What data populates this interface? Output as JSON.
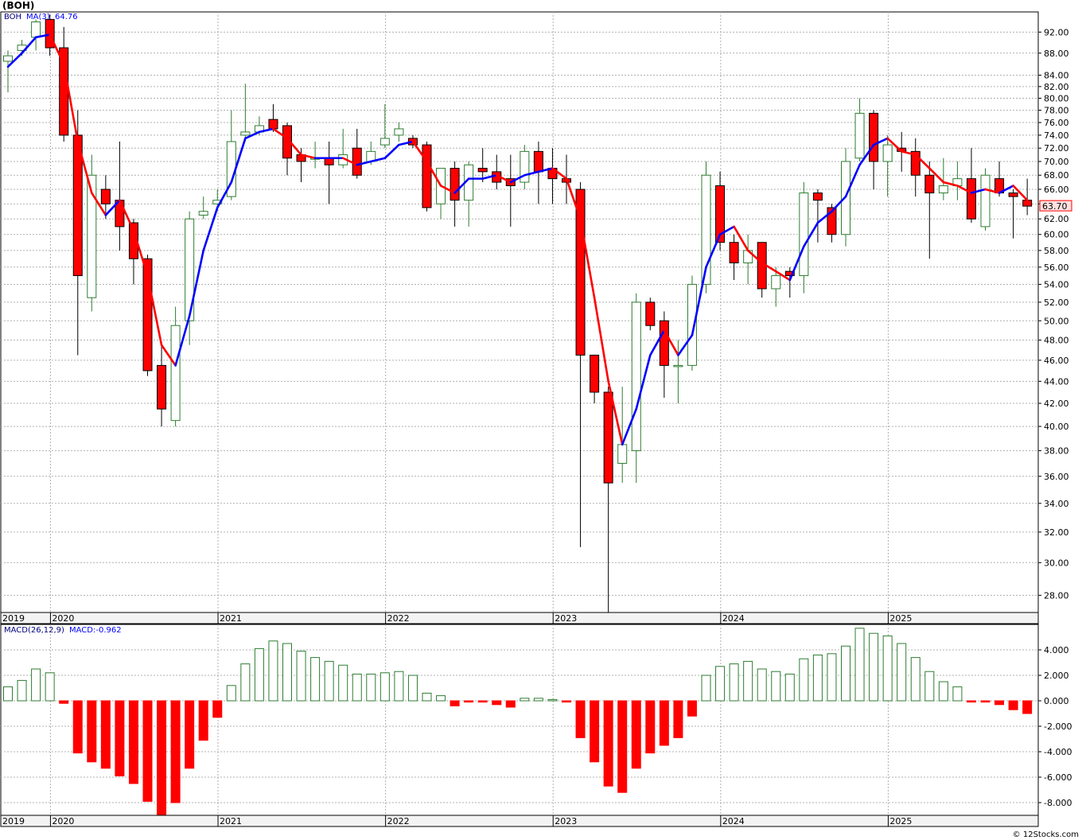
{
  "title": "(BOH)",
  "watermark": "© 12Stocks.com",
  "price_panel": {
    "symbol": "BOH",
    "ma_label": "MA(3)",
    "ma_value": "64.76",
    "last_price": "63.70",
    "y_ticks": [
      "28.00",
      "30.00",
      "32.00",
      "34.00",
      "36.00",
      "38.00",
      "40.00",
      "42.00",
      "44.00",
      "46.00",
      "48.00",
      "50.00",
      "52.00",
      "54.00",
      "56.00",
      "58.00",
      "60.00",
      "62.00",
      "64.00",
      "66.00",
      "68.00",
      "70.00",
      "72.00",
      "74.00",
      "76.00",
      "78.00",
      "80.00",
      "82.00",
      "84.00",
      "88.00",
      "92.00"
    ]
  },
  "macd_panel": {
    "label": "MACD(26,12,9)",
    "value_label": "MACD:-0.962",
    "y_ticks": [
      "4.000",
      "2.000",
      "0.000",
      "-2.000",
      "-4.000",
      "-6.000",
      "-8.000"
    ]
  },
  "years": [
    "2019",
    "2020",
    "2021",
    "2022",
    "2023",
    "2024",
    "2025"
  ],
  "colors": {
    "up": "#2e7d32",
    "down": "#ff0000",
    "ma_up": "#0000ff",
    "ma_down": "#ff0000",
    "grid": "#b0b0b0"
  },
  "chart_data": [
    {
      "type": "candlestick",
      "title": "(BOH)",
      "period": "quarterly",
      "scale": "log",
      "ylim": [
        27,
        96
      ],
      "grid": true,
      "candles": [
        {
          "t": "2019-Q3",
          "o": 86.5,
          "h": 88.5,
          "l": 81,
          "c": 87.5
        },
        {
          "t": "2019-Q4",
          "o": 88.5,
          "h": 90.5,
          "l": 87.5,
          "c": 89.5
        },
        {
          "t": "2020-Q1a",
          "o": 91,
          "h": 94.5,
          "l": 88.5,
          "c": 94
        },
        {
          "t": "2020-Q1b",
          "o": 94.5,
          "h": 95.5,
          "l": 87.5,
          "c": 89
        },
        {
          "t": "2020-Q1c",
          "o": 89,
          "h": 93,
          "l": 73,
          "c": 74
        },
        {
          "t": "2020-Q2a",
          "o": 74,
          "h": 78,
          "l": 46.5,
          "c": 55
        },
        {
          "t": "2020-Q2b",
          "o": 52.5,
          "h": 71,
          "l": 51,
          "c": 68
        },
        {
          "t": "2020-Q2c",
          "o": 66,
          "h": 68,
          "l": 62,
          "c": 64
        },
        {
          "t": "2020-Q3a",
          "o": 64.5,
          "h": 73,
          "l": 58,
          "c": 61
        },
        {
          "t": "2020-Q3b",
          "o": 61.5,
          "h": 62,
          "l": 54,
          "c": 57
        },
        {
          "t": "2020-Q3c",
          "o": 57,
          "h": 57.5,
          "l": 44.5,
          "c": 45
        },
        {
          "t": "2020-Q4a",
          "o": 45.5,
          "h": 47.5,
          "l": 40,
          "c": 41.5
        },
        {
          "t": "2020-Q4b",
          "o": 40.5,
          "h": 51.5,
          "l": 40,
          "c": 49.5
        },
        {
          "t": "2020-Q4c",
          "o": 50,
          "h": 63,
          "l": 47.5,
          "c": 62
        },
        {
          "t": "2021-Q1a",
          "o": 62.5,
          "h": 65,
          "l": 62,
          "c": 63
        },
        {
          "t": "2021-Q1b",
          "o": 64,
          "h": 66,
          "l": 63,
          "c": 64.5
        },
        {
          "t": "2021-Q1c",
          "o": 65,
          "h": 78,
          "l": 64.5,
          "c": 73
        },
        {
          "t": "2021-Q2a",
          "o": 74,
          "h": 82.5,
          "l": 73,
          "c": 74.5
        },
        {
          "t": "2021-Q2b",
          "o": 74.5,
          "h": 77,
          "l": 74,
          "c": 75.5
        },
        {
          "t": "2021-Q2c",
          "o": 76.5,
          "h": 79,
          "l": 74.5,
          "c": 75
        },
        {
          "t": "2021-Q3a",
          "o": 75.5,
          "h": 76,
          "l": 68,
          "c": 70.5
        },
        {
          "t": "2021-Q3b",
          "o": 71,
          "h": 72,
          "l": 67,
          "c": 70
        },
        {
          "t": "2021-Q3c",
          "o": 70.5,
          "h": 73,
          "l": 69,
          "c": 70.5
        },
        {
          "t": "2021-Q4a",
          "o": 70.5,
          "h": 73,
          "l": 64,
          "c": 69.5
        },
        {
          "t": "2021-Q4b",
          "o": 69.5,
          "h": 75,
          "l": 69,
          "c": 71
        },
        {
          "t": "2021-Q4c",
          "o": 72,
          "h": 75,
          "l": 67.5,
          "c": 68
        },
        {
          "t": "2022-Q1a",
          "o": 70,
          "h": 73,
          "l": 69.5,
          "c": 71.5
        },
        {
          "t": "2022-Q1b",
          "o": 72.5,
          "h": 79,
          "l": 72,
          "c": 73.5
        },
        {
          "t": "2022-Q1c",
          "o": 74,
          "h": 76,
          "l": 73,
          "c": 75
        },
        {
          "t": "2022-Q2a",
          "o": 73.5,
          "h": 74,
          "l": 72,
          "c": 72.5
        },
        {
          "t": "2022-Q2b",
          "o": 72.5,
          "h": 73,
          "l": 63,
          "c": 63.5
        },
        {
          "t": "2022-Q2c",
          "o": 64,
          "h": 69,
          "l": 62,
          "c": 69
        },
        {
          "t": "2022-Q3a",
          "o": 69,
          "h": 70,
          "l": 61,
          "c": 64.5
        },
        {
          "t": "2022-Q3b",
          "o": 64.5,
          "h": 70,
          "l": 61,
          "c": 69.5
        },
        {
          "t": "2022-Q3c",
          "o": 69,
          "h": 72,
          "l": 67,
          "c": 68.5
        },
        {
          "t": "2022-Q4a",
          "o": 68.5,
          "h": 71,
          "l": 66,
          "c": 67
        },
        {
          "t": "2022-Q4b",
          "o": 67.5,
          "h": 71,
          "l": 61,
          "c": 66.5
        },
        {
          "t": "2022-Q4c",
          "o": 67,
          "h": 72.5,
          "l": 66,
          "c": 71.5
        },
        {
          "t": "2023-Q1a",
          "o": 71.5,
          "h": 73,
          "l": 64,
          "c": 68.5
        },
        {
          "t": "2023-Q1b",
          "o": 69,
          "h": 72,
          "l": 64,
          "c": 67.5
        },
        {
          "t": "2023-Q1c",
          "o": 67.5,
          "h": 71,
          "l": 64,
          "c": 67
        },
        {
          "t": "2023-Q2a",
          "o": 66,
          "h": 67,
          "l": 31,
          "c": 46.5
        },
        {
          "t": "2023-Q2b",
          "o": 46.5,
          "h": 46.5,
          "l": 42,
          "c": 43
        },
        {
          "t": "2023-Q2c",
          "o": 43,
          "h": 43.5,
          "l": 27,
          "c": 35.5
        },
        {
          "t": "2023-Q3a",
          "o": 37,
          "h": 43.5,
          "l": 35.5,
          "c": 38.5
        },
        {
          "t": "2023-Q3b",
          "o": 38,
          "h": 53,
          "l": 35.5,
          "c": 52
        },
        {
          "t": "2023-Q3c",
          "o": 52,
          "h": 52.5,
          "l": 49,
          "c": 49.5
        },
        {
          "t": "2023-Q4a",
          "o": 50,
          "h": 51,
          "l": 42.5,
          "c": 45.5
        },
        {
          "t": "2023-Q4b",
          "o": 45.5,
          "h": 48,
          "l": 42,
          "c": 45.5
        },
        {
          "t": "2023-Q4c",
          "o": 45.5,
          "h": 55,
          "l": 45,
          "c": 54
        },
        {
          "t": "2024-Q1a",
          "o": 54,
          "h": 70,
          "l": 53,
          "c": 68
        },
        {
          "t": "2024-Q1b",
          "o": 66.5,
          "h": 68.5,
          "l": 58,
          "c": 59
        },
        {
          "t": "2024-Q1c",
          "o": 59,
          "h": 60,
          "l": 54.5,
          "c": 56.5
        },
        {
          "t": "2024-Q2a",
          "o": 56.5,
          "h": 60,
          "l": 54,
          "c": 58
        },
        {
          "t": "2024-Q2b",
          "o": 59,
          "h": 59,
          "l": 52.5,
          "c": 53.5
        },
        {
          "t": "2024-Q2c",
          "o": 53.5,
          "h": 56,
          "l": 51.5,
          "c": 55
        },
        {
          "t": "2024-Q3a",
          "o": 55.5,
          "h": 56,
          "l": 52.5,
          "c": 55
        },
        {
          "t": "2024-Q3b",
          "o": 55,
          "h": 67,
          "l": 53,
          "c": 65.5
        },
        {
          "t": "2024-Q3c",
          "o": 65.5,
          "h": 66,
          "l": 59,
          "c": 64.5
        },
        {
          "t": "2024-Q4a",
          "o": 63.5,
          "h": 64,
          "l": 59,
          "c": 60
        },
        {
          "t": "2024-Q4b",
          "o": 60,
          "h": 72,
          "l": 58.5,
          "c": 70
        },
        {
          "t": "2024-Q4c",
          "o": 70.5,
          "h": 80,
          "l": 70,
          "c": 77.5
        },
        {
          "t": "2025-Q1a",
          "o": 77.5,
          "h": 78,
          "l": 66,
          "c": 70
        },
        {
          "t": "2025-Q1b",
          "o": 70,
          "h": 74,
          "l": 65,
          "c": 72.5
        },
        {
          "t": "2025-Q1c",
          "o": 72,
          "h": 74.5,
          "l": 68.5,
          "c": 71.5
        },
        {
          "t": "2025-Q2a",
          "o": 71.5,
          "h": 73.5,
          "l": 65,
          "c": 68
        },
        {
          "t": "2025-Q2b",
          "o": 68,
          "h": 70,
          "l": 57,
          "c": 65.5
        },
        {
          "t": "2025-Q2c",
          "o": 65.5,
          "h": 70.5,
          "l": 64.5,
          "c": 66.5
        },
        {
          "t": "2025-Q3a",
          "o": 66.5,
          "h": 70,
          "l": 64.5,
          "c": 67.5
        },
        {
          "t": "2025-Q3b",
          "o": 67.5,
          "h": 72,
          "l": 61.5,
          "c": 62
        },
        {
          "t": "2025-Q3c",
          "o": 61,
          "h": 69,
          "l": 60.5,
          "c": 68
        },
        {
          "t": "2025-Q4a",
          "o": 67.5,
          "h": 70,
          "l": 65,
          "c": 65.5
        },
        {
          "t": "2025-Q4b",
          "o": 65.5,
          "h": 66,
          "l": 59.5,
          "c": 65
        },
        {
          "t": "2025-Q4c",
          "o": 64.5,
          "h": 67.5,
          "l": 62.5,
          "c": 63.7
        }
      ],
      "ma3": [
        85.5,
        88,
        91,
        91.5,
        86,
        73,
        65.5,
        62.5,
        64.5,
        60.5,
        55,
        47.5,
        45.5,
        50.5,
        58,
        63.5,
        67,
        73.5,
        74.5,
        75,
        73.5,
        71,
        70.5,
        70.5,
        70.5,
        69.5,
        70,
        70.5,
        72.5,
        73,
        70,
        66.5,
        65.5,
        67.5,
        67.5,
        68,
        67,
        68,
        68.5,
        69,
        67.5,
        62,
        52.5,
        44,
        38.5,
        41.5,
        46.5,
        49,
        46.5,
        48.5,
        56,
        60,
        61,
        58,
        56.5,
        55.5,
        54.5,
        58.5,
        61.5,
        63,
        65,
        69.5,
        72.5,
        73.5,
        71.5,
        71,
        69,
        67,
        66.5,
        65.5,
        66,
        65.5,
        66.5,
        64.5
      ]
    },
    {
      "type": "bar",
      "title": "MACD(26,12,9)",
      "ylim": [
        -9,
        6
      ],
      "values": [
        1.1,
        1.6,
        2.5,
        2.2,
        -0.2,
        -4.1,
        -4.8,
        -5.3,
        -5.9,
        -6.5,
        -7.9,
        -9.0,
        -8.0,
        -5.3,
        -3.1,
        -1.3,
        1.2,
        2.9,
        4.1,
        4.7,
        4.5,
        3.9,
        3.4,
        3.1,
        2.8,
        2.1,
        2.1,
        2.2,
        2.3,
        2.0,
        0.6,
        0.4,
        -0.4,
        -0.1,
        -0.1,
        -0.3,
        -0.5,
        0.2,
        0.2,
        0.1,
        -0.1,
        -2.9,
        -4.8,
        -6.7,
        -7.2,
        -5.3,
        -4.1,
        -3.5,
        -2.9,
        -1.2,
        2.0,
        2.7,
        2.9,
        3.1,
        2.5,
        2.3,
        2.1,
        3.3,
        3.6,
        3.7,
        4.3,
        5.7,
        5.3,
        5.1,
        4.5,
        3.4,
        2.3,
        1.5,
        1.1,
        -0.1,
        -0.1,
        -0.3,
        -0.7,
        -1.0
      ]
    }
  ]
}
